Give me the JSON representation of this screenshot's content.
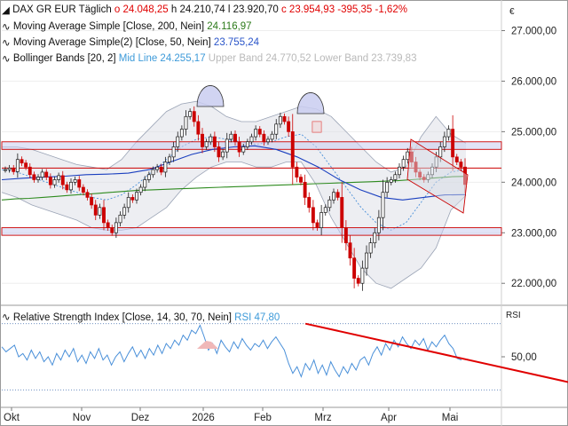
{
  "header": {
    "symbol": "DAX GR EUR",
    "interval": "Täglich",
    "open": "o 24.048,25",
    "high": "h 24.210,74",
    "low": "l 23.920,70",
    "close": "c 23.954,93",
    "change": "-395,35",
    "change_pct": "-1,62%",
    "currency": "€"
  },
  "indicators": {
    "sma200_name": "Moving Average Simple [Close, 200, Nein]",
    "sma200_value": "24.116,97",
    "sma50_name": "Moving Average Simple(2) [Close, 50, Nein]",
    "sma50_value": "23.755,24",
    "bb_name": "Bollinger Bands [20, 2]",
    "bb_mid": "Mid Line 24.255,17",
    "bb_upper": "Upper Band 24.770,52",
    "bb_lower": "Lower Band 23.739,83"
  },
  "rsi_panel": {
    "name": "Relative Strength Index [Close, 14, 30, 70, Nein]",
    "value": "RSI 47,80",
    "axis_title": "RSI",
    "tick_label": "50,00"
  },
  "colors": {
    "up": "#1a1a1a",
    "down": "#cc0000",
    "sma200": "#2e8b1f",
    "sma50": "#1a3fbf",
    "bollinger": "#4a90d9",
    "support_resistance": "#cc0000",
    "rsi": "#4a90d9"
  },
  "chart_data": [
    {
      "type": "candlestick",
      "title": "DAX GR EUR",
      "y_axis_side": "right",
      "ylim": [
        21600,
        27500
      ],
      "y_ticks": [
        22000,
        23000,
        24000,
        25000,
        26000,
        27000
      ],
      "y_tick_labels": [
        "22.000,00",
        "23.000,00",
        "24.000,00",
        "25.000,00",
        "26.000,00",
        "27.000,00"
      ],
      "x_tick_labels": [
        "Okt",
        "Nov",
        "Dez",
        "2026",
        "Feb",
        "Mrz",
        "Apr",
        "Mai"
      ],
      "close": [
        24250,
        24280,
        24210,
        24450,
        24380,
        24300,
        24150,
        24050,
        24100,
        24200,
        24100,
        23950,
        24050,
        24130,
        23950,
        23850,
        24000,
        24050,
        23900,
        23800,
        23700,
        23550,
        23350,
        23500,
        23200,
        23100,
        23000,
        23200,
        23350,
        23500,
        23700,
        23650,
        23800,
        23900,
        24050,
        24150,
        24250,
        24300,
        24200,
        24400,
        24500,
        24700,
        24900,
        25050,
        25300,
        25400,
        25200,
        24950,
        24700,
        24800,
        24900,
        24700,
        24500,
        24600,
        24850,
        24950,
        24800,
        24600,
        24700,
        24800,
        24900,
        25050,
        24950,
        24800,
        24850,
        24950,
        25150,
        25300,
        25200,
        25000,
        24300,
        24100,
        24000,
        23700,
        23500,
        23200,
        23100,
        23400,
        23500,
        23650,
        23800,
        23700,
        23100,
        22800,
        22500,
        22100,
        22000,
        22300,
        22600,
        22800,
        23000,
        23300,
        23800,
        24000,
        24050,
        24150,
        24300,
        24450,
        24600,
        24400,
        24200,
        24100,
        24050,
        24150,
        24300,
        24500,
        24700,
        24900,
        25050,
        24500,
        24400,
        24300,
        23955
      ],
      "sma200": [
        23650,
        23670,
        23680,
        23700,
        23720,
        23740,
        23760,
        23780,
        23800,
        23820,
        23840,
        23850,
        23860,
        23870,
        23880,
        23890,
        23900,
        23910,
        23920,
        23930,
        23940,
        23950,
        23960,
        23970,
        23980,
        23990,
        24000,
        24010,
        24020,
        24030,
        24050,
        24070,
        24090,
        24110,
        24117
      ],
      "sma50": [
        24050,
        24080,
        24100,
        24120,
        24150,
        24160,
        24180,
        24250,
        24400,
        24550,
        24650,
        24700,
        24720,
        24650,
        24500,
        24300,
        24050,
        23850,
        23700,
        23650,
        23700,
        23750,
        23755
      ],
      "bollinger": {
        "mid": [
          24250,
          24200,
          24100,
          24000,
          23900,
          23800,
          23700,
          23650,
          23750,
          23950,
          24200,
          24450,
          24700,
          24850,
          24900,
          24850,
          24800,
          24750,
          24800,
          24900,
          24950,
          24700,
          24300,
          23900,
          23500,
          23200,
          23050,
          23200,
          23600,
          24000,
          24200,
          24255
        ],
        "upper": [
          24700,
          24700,
          24650,
          24550,
          24450,
          24350,
          24300,
          24250,
          24450,
          24800,
          25100,
          25400,
          25550,
          25600,
          25500,
          25300,
          25200,
          25200,
          25300,
          25400,
          25500,
          25450,
          25300,
          25000,
          24700,
          24400,
          24200,
          24300,
          24900,
          25300,
          24950,
          24771
        ],
        "lower": [
          23800,
          23700,
          23550,
          23450,
          23350,
          23250,
          23100,
          23050,
          23050,
          23100,
          23300,
          23500,
          23850,
          24100,
          24300,
          24400,
          24400,
          24300,
          24300,
          24400,
          24400,
          23950,
          23300,
          22800,
          22300,
          22000,
          21900,
          22100,
          22300,
          22700,
          23450,
          23740
        ]
      },
      "support_resistance": [
        {
          "from": 24650,
          "to": 24800
        },
        {
          "from": 24280,
          "to": 24280
        },
        {
          "from": 22950,
          "to": 23100
        }
      ]
    },
    {
      "type": "line",
      "title": "Relative Strength Index [Close, 14, 30, 70, Nein]",
      "series": [
        {
          "name": "RSI",
          "values": [
            56,
            53,
            55,
            57,
            50,
            52,
            48,
            54,
            49,
            53,
            47,
            50,
            45,
            52,
            48,
            54,
            50,
            55,
            47,
            51,
            46,
            53,
            49,
            55,
            48,
            51,
            45,
            50,
            53,
            47,
            52,
            56,
            50,
            54,
            49,
            55,
            51,
            57,
            52,
            58,
            55,
            60,
            57,
            63,
            60,
            66,
            64,
            69,
            62,
            54,
            58,
            52,
            60,
            56,
            53,
            59,
            55,
            61,
            57,
            54,
            58,
            56,
            60,
            55,
            59,
            62,
            58,
            54,
            46,
            40,
            44,
            38,
            46,
            42,
            48,
            40,
            45,
            39,
            47,
            42,
            38,
            44,
            40,
            46,
            42,
            48,
            50,
            45,
            52,
            56,
            51,
            58,
            54,
            60,
            56,
            62,
            58,
            55,
            60,
            57,
            61,
            54,
            59,
            56,
            60,
            63,
            58,
            55,
            49,
            48
          ]
        }
      ],
      "reference_lines": [
        70,
        30
      ],
      "ylim": [
        20,
        80
      ],
      "y_ticks": [
        50
      ],
      "y_tick_labels": [
        "50,00"
      ],
      "trendline": [
        {
          "x": 72,
          "y": 70
        },
        {
          "x": 155,
          "y": 23
        }
      ]
    }
  ]
}
